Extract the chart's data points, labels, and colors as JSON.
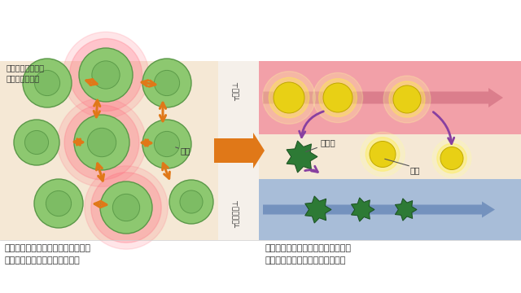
{
  "bg_left": "#f5e8d5",
  "bg_mid": "#f0ece4",
  "bg_right_blood": "#f2a0a8",
  "bg_right_mid": "#f5e8d5",
  "bg_right_lymph": "#a8bdd8",
  "cell_green_face": "#8dc870",
  "cell_green_edge": "#5a9848",
  "cell_green_inner": "#6aaa58",
  "cell_dark_face": "#2d7a35",
  "cell_dark_edge": "#1a5020",
  "arrow_orange": "#e07818",
  "arrow_pink": "#d87888",
  "arrow_blue": "#6888b8",
  "arrow_purple": "#8840a0",
  "yellow_face": "#e8d015",
  "yellow_glow1": "#ffffa0",
  "yellow_glow2": "#ffee50",
  "hot_glow": "#ff7080",
  "text_dark": "#333333",
  "label_blood": "┬血管⊥",
  "label_lymph": "┬リンパ管⊥",
  "label_cell": "細胞",
  "label_friction": "細胞の衝突により\n発生する摩擦熱",
  "label_haiki": "老廃物",
  "label_eiyo": "栄養",
  "bottom_left": "超音波の振動により細胞同士が衝突\nし、微量の摩擦熱が発生する。",
  "bottom_right": "熱が発生すると血流やリンパ液の流\nれが良くなり、代謝を促進する。"
}
